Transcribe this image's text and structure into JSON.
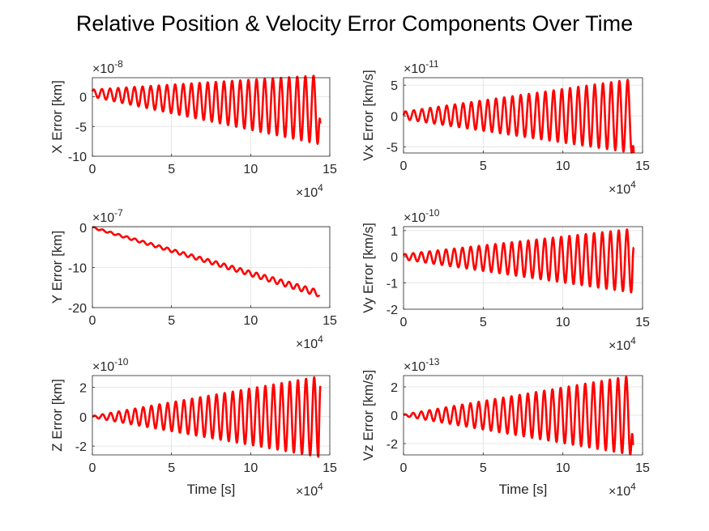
{
  "figure": {
    "title": "Relative Position & Velocity Error Components Over Time"
  },
  "colors": {
    "line": "#ff0000",
    "axis": "#262626",
    "grid": "#dfdfdf"
  },
  "chart_data": [
    {
      "type": "line",
      "ylabel": "X Error [km]",
      "xlabel": "",
      "y_exponent": "-8",
      "x_exponent": "4",
      "xlim": [
        0,
        15
      ],
      "ylim": [
        -10,
        3.2
      ],
      "xticks": [
        "0",
        "5",
        "10",
        "15"
      ],
      "yticks": [
        "-10",
        "-5",
        "0"
      ],
      "ytick_values": [
        -10,
        -5,
        0
      ],
      "grid": true,
      "signal": {
        "model": "ramp_oscillation",
        "x_end": 14.4,
        "offset_start": 0.6,
        "offset_end": -2.2,
        "amp_start": 0.6,
        "amp_end": 5.8,
        "cycles": 28,
        "phase_start": 0.5,
        "end_value": -4.5
      }
    },
    {
      "type": "line",
      "ylabel": "Vx Error [km/s]",
      "xlabel": "",
      "y_exponent": "-11",
      "x_exponent": "4",
      "xlim": [
        0,
        15
      ],
      "ylim": [
        -6,
        6.2
      ],
      "xticks": [
        "0",
        "5",
        "10",
        "15"
      ],
      "yticks": [
        "-5",
        "0",
        "5"
      ],
      "ytick_values": [
        -5,
        0,
        5
      ],
      "grid": true,
      "signal": {
        "model": "ramp_oscillation",
        "x_end": 14.45,
        "offset_start": 0.1,
        "offset_end": 0,
        "amp_start": 0.6,
        "amp_end": 6.0,
        "cycles": 28,
        "phase_start": 0,
        "end_value": -6.0
      }
    },
    {
      "type": "line",
      "ylabel": "Y Error [km]",
      "xlabel": "",
      "y_exponent": "-7",
      "x_exponent": "4",
      "xlim": [
        0,
        15
      ],
      "ylim": [
        -20,
        0.2
      ],
      "xticks": [
        "0",
        "5",
        "10",
        "15"
      ],
      "yticks": [
        "-20",
        "-10",
        "0"
      ],
      "ytick_values": [
        -20,
        -10,
        0
      ],
      "grid": true,
      "signal": {
        "model": "ramp_oscillation",
        "x_end": 14.35,
        "offset_start": 0,
        "offset_end": -16.5,
        "amp_start": 0.2,
        "amp_end": 0.8,
        "cycles": 28,
        "phase_start": 0,
        "end_value": -17.2
      }
    },
    {
      "type": "line",
      "ylabel": "Vy Error [km/s]",
      "xlabel": "",
      "y_exponent": "-10",
      "x_exponent": "4",
      "xlim": [
        0,
        15
      ],
      "ylim": [
        -2,
        1.15
      ],
      "xticks": [
        "0",
        "5",
        "10",
        "15"
      ],
      "yticks": [
        "-2",
        "-1",
        "0",
        "1"
      ],
      "ytick_values": [
        -2,
        -1,
        0,
        1
      ],
      "grid": true,
      "signal": {
        "model": "ramp_oscillation",
        "x_end": 14.45,
        "offset_start": 0,
        "offset_end": -0.15,
        "amp_start": 0.1,
        "amp_end": 1.22,
        "cycles": 28,
        "phase_start": 0.5,
        "end_value": 0.35
      }
    },
    {
      "type": "line",
      "ylabel": "Z Error [km]",
      "xlabel": "Time [s]",
      "y_exponent": "-10",
      "x_exponent": "4",
      "xlim": [
        0,
        15
      ],
      "ylim": [
        -2.6,
        2.8
      ],
      "xticks": [
        "0",
        "5",
        "10",
        "15"
      ],
      "yticks": [
        "-2",
        "0",
        "2"
      ],
      "ytick_values": [
        -2,
        0,
        2
      ],
      "grid": true,
      "signal": {
        "model": "ramp_oscillation",
        "x_end": 14.4,
        "offset_start": 0,
        "offset_end": 0,
        "amp_start": 0.05,
        "amp_end": 2.75,
        "cycles": 28,
        "phase_start": 0,
        "end_value": 2.1
      }
    },
    {
      "type": "line",
      "ylabel": "Vz Error [km/s]",
      "xlabel": "Time [s]",
      "y_exponent": "-13",
      "x_exponent": "4",
      "xlim": [
        0,
        15
      ],
      "ylim": [
        -2.8,
        2.8
      ],
      "xticks": [
        "0",
        "5",
        "10",
        "15"
      ],
      "yticks": [
        "-2",
        "0",
        "2"
      ],
      "ytick_values": [
        -2,
        0,
        2
      ],
      "grid": true,
      "signal": {
        "model": "ramp_oscillation",
        "x_end": 14.4,
        "offset_start": 0,
        "offset_end": 0,
        "amp_start": 0.05,
        "amp_end": 2.8,
        "cycles": 28,
        "phase_start": 0.5,
        "end_value": -2.1
      }
    }
  ]
}
